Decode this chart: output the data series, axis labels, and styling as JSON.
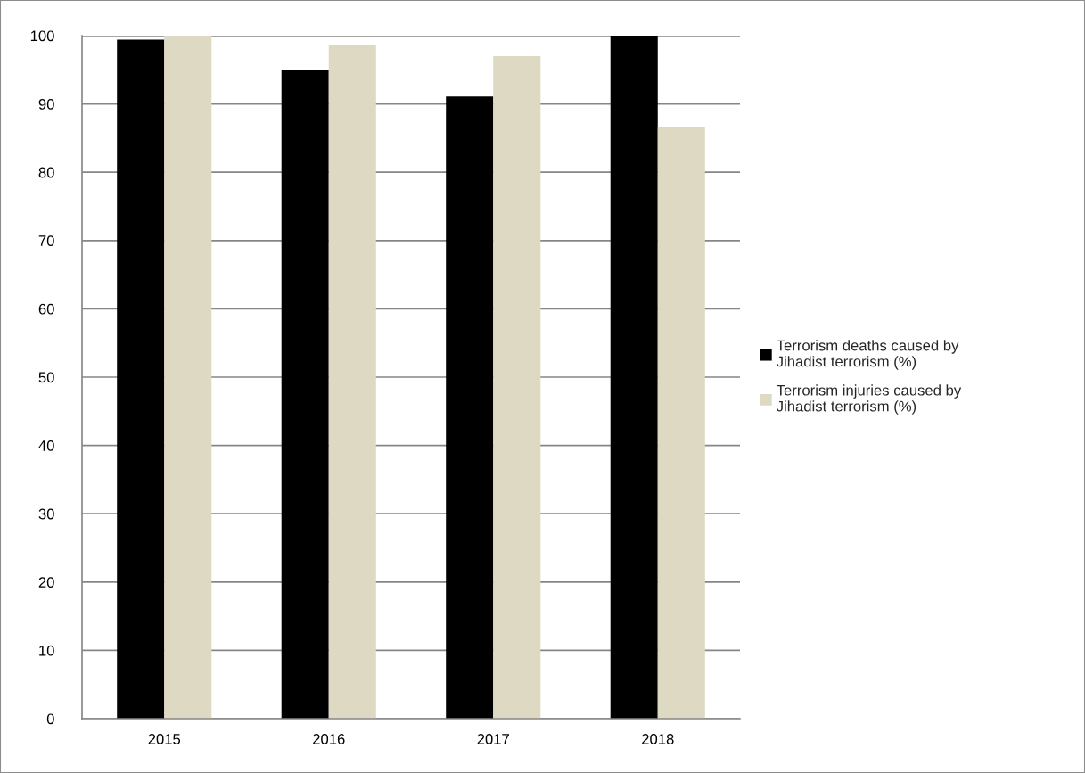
{
  "chart_data": {
    "type": "bar",
    "categories": [
      "2015",
      "2016",
      "2017",
      "2018"
    ],
    "series": [
      {
        "name": "Terrorism deaths caused by\nJihadist terrorism (%)",
        "color": "#000000",
        "values": [
          99.4,
          95.0,
          91.1,
          100
        ]
      },
      {
        "name": "Terrorism injuries caused by\nJihadist terrorism (%)",
        "color": "#ddd9c3",
        "values": [
          100,
          98.7,
          97.0,
          86.7
        ]
      }
    ],
    "ylim": [
      0,
      100
    ],
    "yticks": [
      0,
      10,
      20,
      30,
      40,
      50,
      60,
      70,
      80,
      90,
      100
    ],
    "grid": "y",
    "legend": "right"
  }
}
